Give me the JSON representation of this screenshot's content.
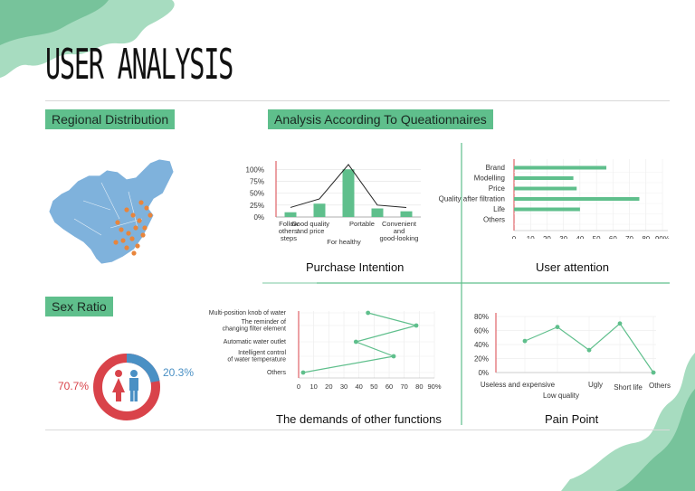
{
  "header": {
    "title": "USER ANALYSIS"
  },
  "sections": {
    "regional": "Regional Distribution",
    "questionnaire": "Analysis According To Queationnaires",
    "sex_ratio": "Sex Ratio"
  },
  "captions": {
    "purchase": "Purchase Intention",
    "attention": "User attention",
    "demands": "The demands of other functions",
    "pain": "Pain Point"
  },
  "colors": {
    "accent": "#5fbf8c",
    "male": "#4a90c4",
    "female": "#d9434a",
    "map": "#7fb2dc",
    "map_dots": "#e8853c"
  },
  "sex_ratio": {
    "female_label": "70.7%",
    "male_label": "20.3%",
    "female": 70.7,
    "male": 20.3
  },
  "chart_data": [
    {
      "type": "bar",
      "caption": "Purchase Intention",
      "categories": [
        "Follow others' steps",
        "Good quality and price",
        "For healthy",
        "Portable",
        "Convenient and good-looking"
      ],
      "category_lines": [
        [
          "Follow",
          "others'",
          "steps"
        ],
        [
          "Good quality",
          "and price"
        ],
        [
          "For healthy"
        ],
        [
          "Portable"
        ],
        [
          "Convenient",
          "and",
          "good-looking"
        ]
      ],
      "values": [
        10,
        28,
        100,
        18,
        12
      ],
      "overlay_line": [
        20,
        38,
        110,
        25,
        20
      ],
      "yticks": [
        "100%",
        "75%",
        "50%",
        "25%",
        "0%"
      ],
      "ylim": [
        0,
        110
      ]
    },
    {
      "type": "bar",
      "orientation": "horizontal",
      "caption": "User attention",
      "categories": [
        "Brand",
        "Modelling",
        "Price",
        "Quality after filtration",
        "Life",
        "Others"
      ],
      "values": [
        56,
        36,
        38,
        76,
        40,
        0
      ],
      "xticks": [
        "0",
        "10",
        "20",
        "30",
        "40",
        "50",
        "60",
        "70",
        "80",
        "90%"
      ],
      "xlim": [
        0,
        90
      ]
    },
    {
      "type": "line",
      "orientation": "horizontal",
      "caption": "The demands of other functions",
      "categories": [
        "Multi-position knob of water",
        "The reminder of changing filter element",
        "Automatic water outlet",
        "Intelligent control of water temperature",
        "Others"
      ],
      "category_lines": [
        [
          "Multi-position knob of water"
        ],
        [
          "The reminder of",
          "changing filter element"
        ],
        [
          "Automatic water outlet"
        ],
        [
          "Intelligent control",
          "of water temperature"
        ],
        [
          "Others"
        ]
      ],
      "values": [
        46,
        78,
        38,
        63,
        3
      ],
      "xticks": [
        "0",
        "10",
        "20",
        "30",
        "40",
        "50",
        "60",
        "70",
        "80",
        "90%"
      ],
      "xlim": [
        0,
        90
      ]
    },
    {
      "type": "line",
      "caption": "Pain Point",
      "categories": [
        "Useless and expensive",
        "Low quality",
        "Ugly",
        "Short life",
        "Others"
      ],
      "values": [
        45,
        65,
        32,
        70,
        0
      ],
      "yticks": [
        "80%",
        "60%",
        "40%",
        "20%",
        "0%"
      ],
      "ylim": [
        0,
        80
      ]
    }
  ]
}
